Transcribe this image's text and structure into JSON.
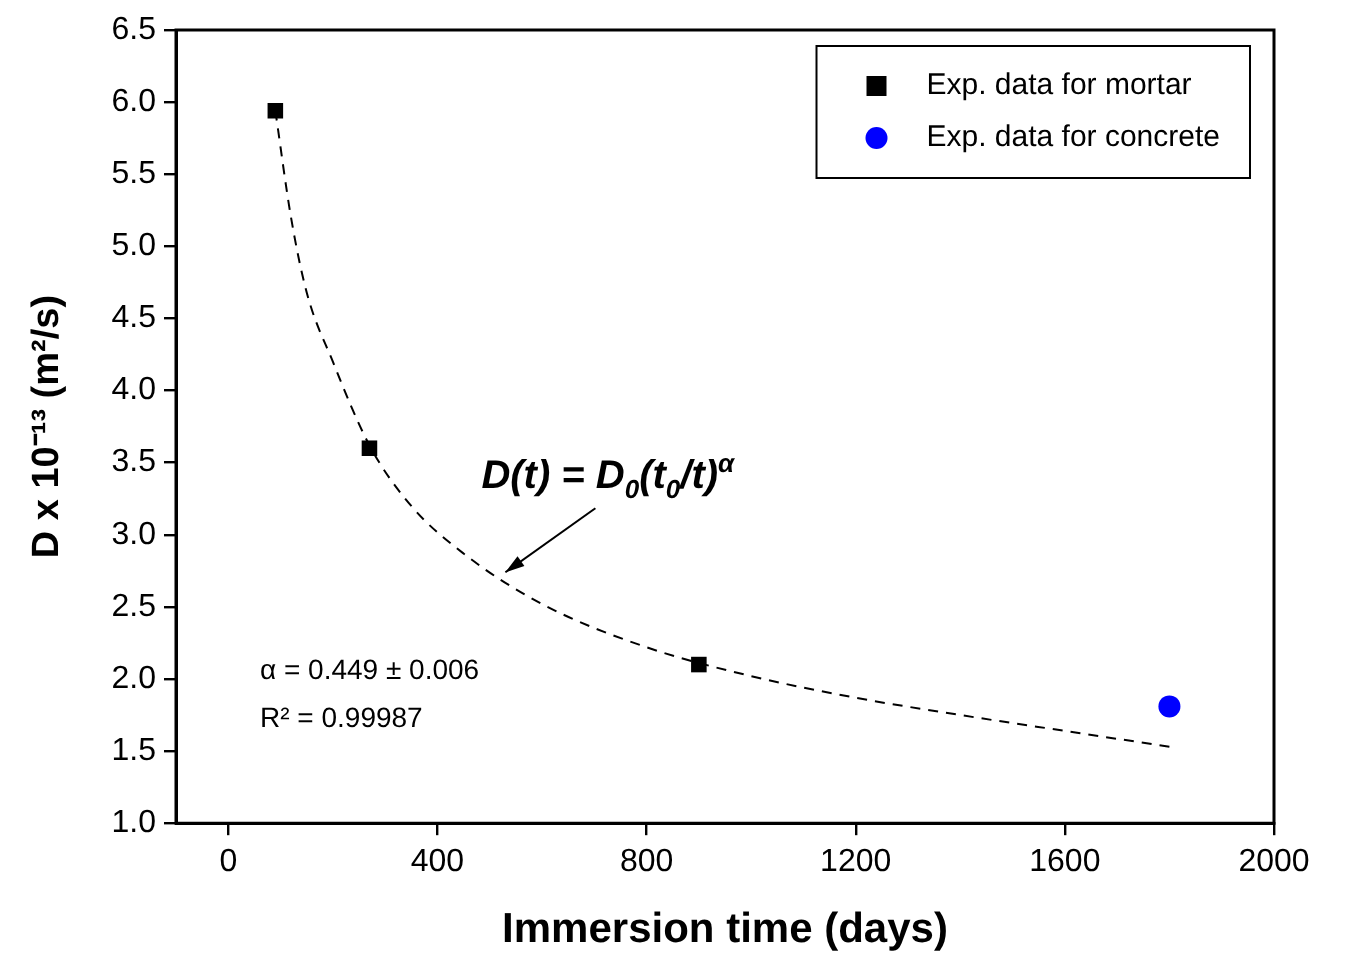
{
  "chart_data": {
    "type": "scatter",
    "xlabel": "Immersion time (days)",
    "ylabel": "D x 10⁻¹³ (m²/s)",
    "xlim": [
      -100,
      2000
    ],
    "xticks": [
      0,
      400,
      800,
      1200,
      1600,
      2000
    ],
    "ylim": [
      1,
      6.5
    ],
    "yticks": [
      {
        "value": 1,
        "label": "1.0"
      },
      {
        "value": 1.5,
        "label": "1.5"
      },
      {
        "value": 2,
        "label": "2.0"
      },
      {
        "value": 2.5,
        "label": "2.5"
      },
      {
        "value": 3,
        "label": "3.0"
      },
      {
        "value": 3.5,
        "label": "3.5"
      },
      {
        "value": 4,
        "label": "4.0"
      },
      {
        "value": 4.5,
        "label": "4.5"
      },
      {
        "value": 5,
        "label": "5.0"
      },
      {
        "value": 5.5,
        "label": "5.5"
      },
      {
        "value": 6,
        "label": "6.0"
      },
      {
        "value": 6.5,
        "label": "6.5"
      }
    ],
    "grid": false,
    "legend": "top right",
    "series": [
      {
        "name": "Exp. data for mortar",
        "type": "scatter",
        "marker": "square",
        "color": "#000000",
        "x": [
          90,
          270,
          900
        ],
        "values": [
          5.94,
          3.6,
          2.1
        ]
      },
      {
        "name": "Exp. data for concrete",
        "type": "scatter",
        "marker": "circle",
        "color": "#0000ff",
        "x": [
          1800
        ],
        "values": [
          1.81
        ]
      },
      {
        "type": "line",
        "marker": "none",
        "line_style": "dashed",
        "color": "#000000",
        "x": [
          90,
          120,
          150,
          200,
          270,
          350,
          450,
          600,
          800,
          1000,
          1200,
          1400,
          1600,
          1800
        ],
        "values": [
          5.94,
          5.2,
          4.68,
          4.2,
          3.62,
          3.2,
          2.87,
          2.52,
          2.22,
          2.02,
          1.87,
          1.75,
          1.64,
          1.53
        ]
      }
    ],
    "annotations": [
      {
        "text": "D(t) = D$_{0}$(t$_{0}$/t)$^{α}$",
        "x": 530,
        "y": 2.74
      },
      "α = 0.449 ± 0.006",
      "R² = 0.99987"
    ]
  }
}
